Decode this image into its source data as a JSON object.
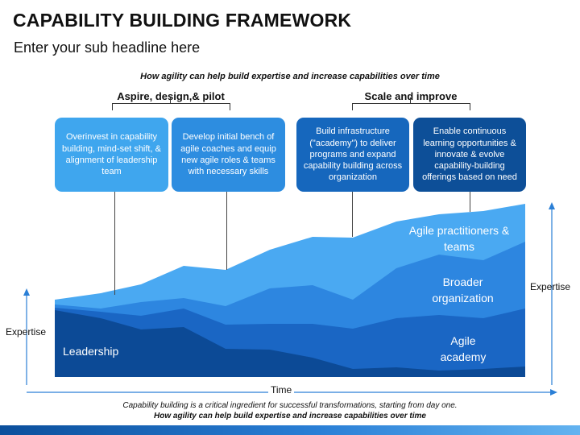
{
  "header": {
    "title": "CAPABILITY BUILDING FRAMEWORK",
    "subtitle": "Enter your sub headline here"
  },
  "question": "How agility can help build expertise and increase capabilities over time",
  "groups": [
    {
      "label": "Aspire, design,& pilot"
    },
    {
      "label": "Scale and improve"
    }
  ],
  "cards": [
    {
      "text": "Overinvest in capability building, mind-set shift, & alignment of leadership team",
      "color": "#3fa6ee"
    },
    {
      "text": "Develop initial bench of agile coaches and equip new agile roles & teams with necessary skills",
      "color": "#2d8de0"
    },
    {
      "text": "Build infrastructure (\"academy\") to deliver programs and expand capability building across organization",
      "color": "#1667bd"
    },
    {
      "text": "Enable continuous learning opportunities & innovate & evolve capability-building offerings based on need",
      "color": "#0d4f98"
    }
  ],
  "layers": [
    {
      "label": "Agile practitioners & teams",
      "color": "#4aa9f2"
    },
    {
      "label": "Broader organization",
      "color": "#2d86e0"
    },
    {
      "label": "Agile academy",
      "color": "#1a66c4"
    },
    {
      "label": "Leadership",
      "color": "#0c4a96"
    }
  ],
  "axes": {
    "x_label": "Time",
    "y_label_left": "Expertise",
    "y_label_right": "Expertise"
  },
  "footnotes": [
    "Capability building is a critical ingredient for successful transformations, starting from day one.",
    "How agility can help build expertise and increase capabilities over time"
  ]
}
